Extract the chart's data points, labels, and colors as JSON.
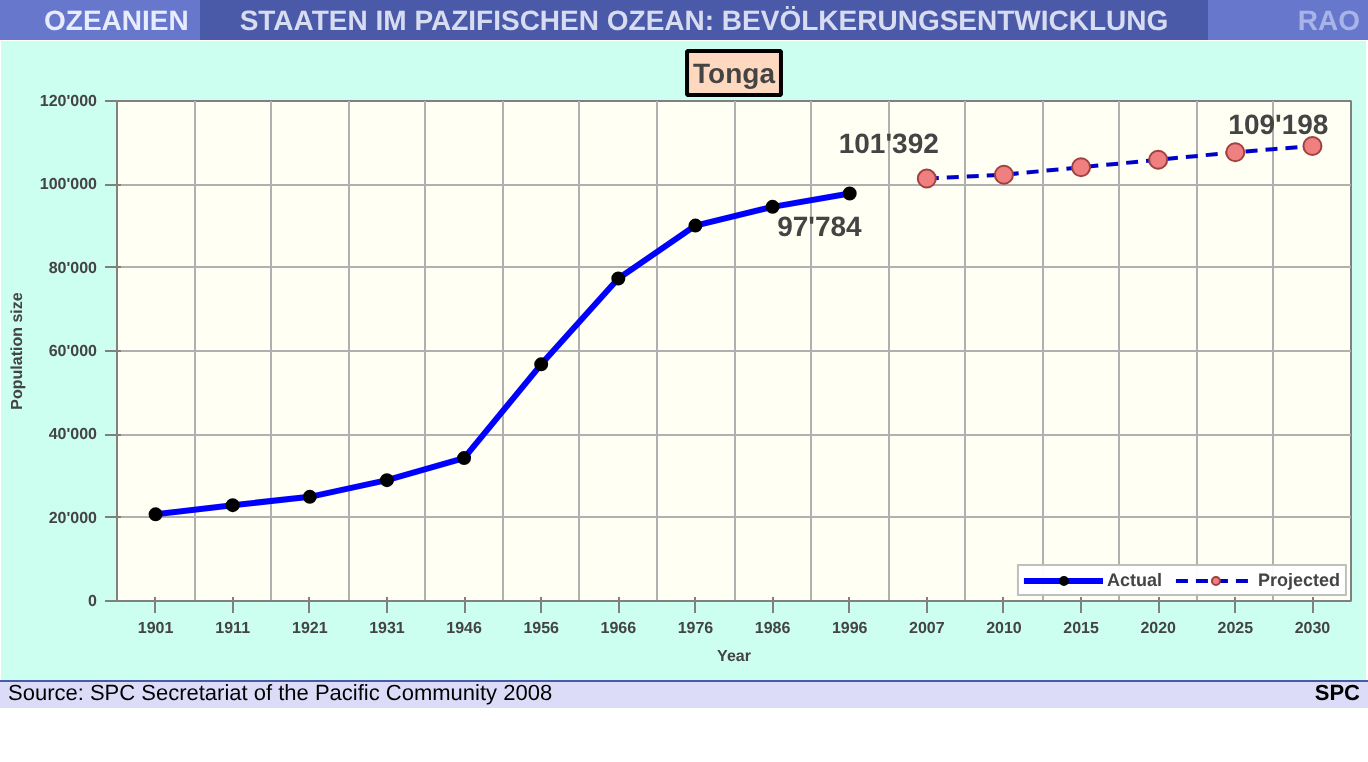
{
  "chart_data": {
    "type": "line",
    "title": "STAATEN IM PAZIFISCHEN OZEAN: BEVÖLKERUNGSENTWICKLUNG",
    "subtitle": "Tonga",
    "xlabel": "Year",
    "ylabel": "Population size",
    "categories": [
      "1901",
      "1911",
      "1921",
      "1931",
      "1946",
      "1956",
      "1966",
      "1976",
      "1986",
      "1996",
      "2007",
      "2010",
      "2015",
      "2020",
      "2025",
      "2030"
    ],
    "series": [
      {
        "name": "Actual",
        "color": "#0000ff",
        "line_style": "solid",
        "values": [
          20800,
          23000,
          25000,
          29000,
          34300,
          56800,
          77400,
          90100,
          94600,
          97784,
          null,
          null,
          null,
          null,
          null,
          null
        ]
      },
      {
        "name": "Projected",
        "color": "#0000cc",
        "line_style": "dashed",
        "values": [
          null,
          null,
          null,
          null,
          null,
          null,
          null,
          null,
          null,
          null,
          101392,
          102300,
          104100,
          105900,
          107700,
          109198
        ]
      }
    ],
    "ylim": [
      0,
      120000
    ],
    "yticks": [
      0,
      {
        "value": 20000,
        "label": "20'000"
      },
      {
        "value": 40000,
        "label": "40'000"
      },
      {
        "value": 60000,
        "label": "60'000"
      },
      {
        "value": 80000,
        "label": "80'000"
      },
      {
        "value": 100000,
        "label": "100'000"
      },
      {
        "value": 120000,
        "label": "120'000"
      }
    ],
    "grid": true,
    "legend": "bottom",
    "marker": "circle",
    "annotations": [
      "OZEANIEN",
      "RAO",
      "Source: SPC Secretariat of the Pacific Community 2008",
      "SPC",
      {
        "text": "97'784",
        "x": "1996",
        "y": 97784
      },
      {
        "text": "101'392",
        "x": "2007",
        "y": 101392
      },
      {
        "text": "109'198",
        "x": "2030",
        "y": 109198
      }
    ]
  }
}
